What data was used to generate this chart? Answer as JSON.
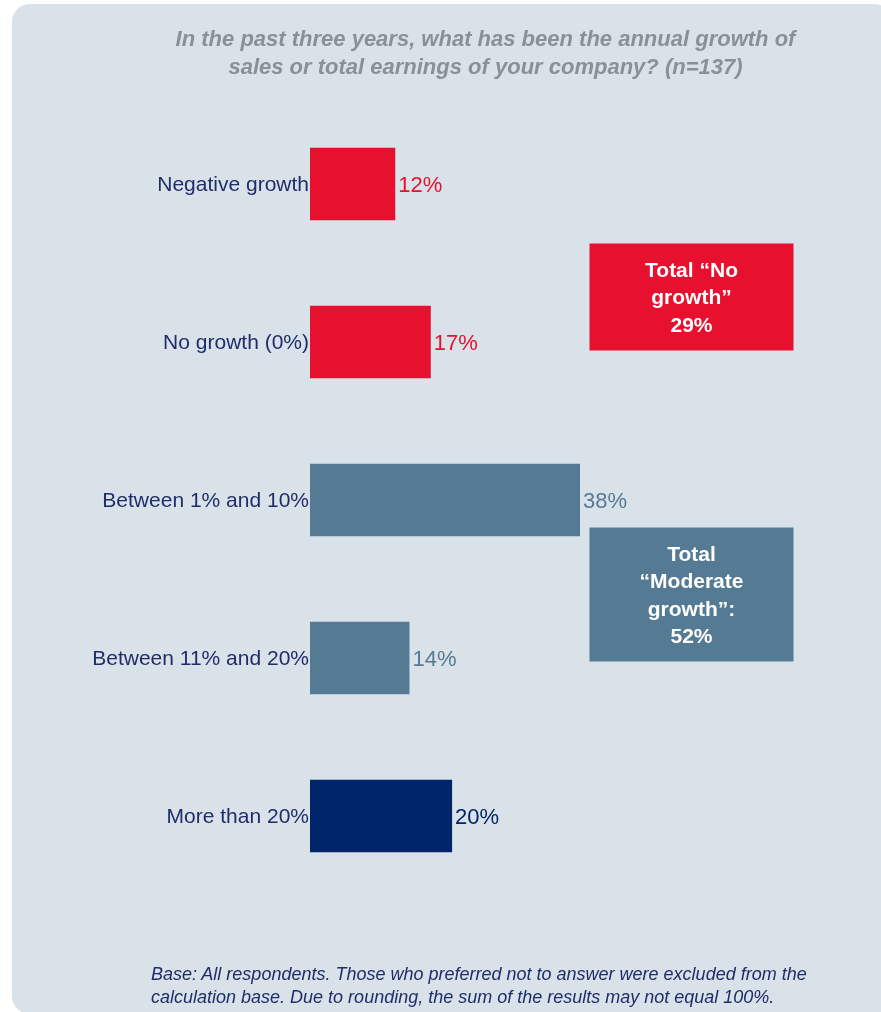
{
  "chart_data": {
    "type": "bar",
    "orientation": "horizontal",
    "title": "In the past three years, what has been the annual growth of\nsales or total earnings of your company? (n=137)",
    "categories": [
      "Negative growth",
      "No growth (0%)",
      "Between 1% and 10%",
      "Between 11% and 20%",
      "More than 20%"
    ],
    "values": [
      12,
      17,
      38,
      14,
      20
    ],
    "colors": [
      "#e8102f",
      "#e8102f",
      "#557a94",
      "#557a94",
      "#002469"
    ],
    "value_labels": [
      "12%",
      "17%",
      "38%",
      "14%",
      "20%"
    ],
    "annotations": [
      "Total “No\ngrowth”\n29%",
      "Total\n“Moderate\ngrowth”:\n52%",
      "Base: All respondents. Those who preferred not to answer were excluded from the\ncalculation base. Due to rounding, the sum of the results may not equal 100%."
    ]
  }
}
